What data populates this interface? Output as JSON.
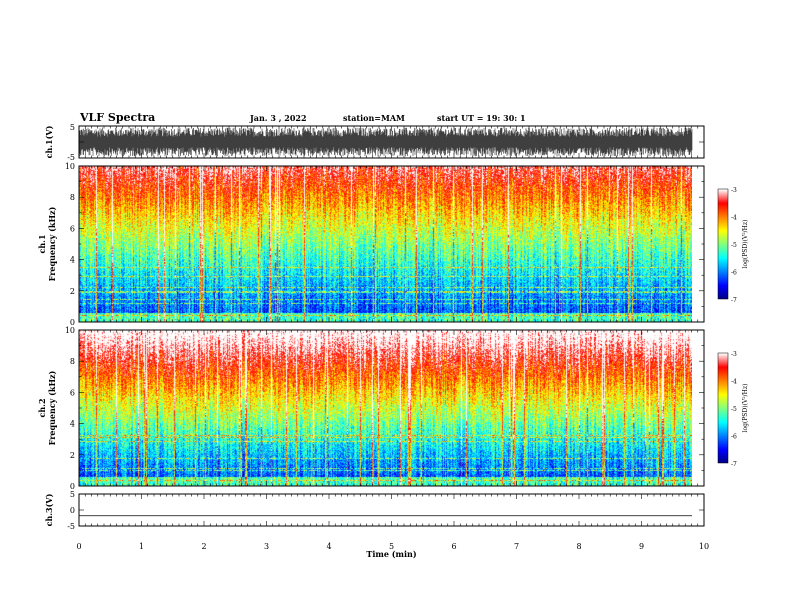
{
  "header": {
    "title": "VLF Spectra",
    "date": "Jan. 3 , 2022",
    "station": "station=MAM",
    "start": "start UT =  19: 30: 1"
  },
  "chart_data": [
    {
      "type": "line",
      "panel": "ch1-waveform",
      "ylabel": "ch.1(V)",
      "ylim": [
        -5,
        5
      ],
      "y_ticks": [
        "5",
        "-5"
      ],
      "description_values": {
        "amplitude_range_v": [
          -4.8,
          4.8
        ]
      }
    },
    {
      "type": "heatmap",
      "panel": "ch1-spectrogram",
      "ylabel": "ch.1",
      "ylabel2": "Frequency (kHz)",
      "ylim": [
        0,
        10
      ],
      "y_ticks": [
        "0",
        "2",
        "4",
        "6",
        "8",
        "10"
      ],
      "colorbar": {
        "label": "log(PSD)(V²/Hz)",
        "range": [
          -7,
          -3
        ],
        "ticks": [
          "-3",
          "-4",
          "-5",
          "-6",
          "-7"
        ]
      },
      "x_data_max_min": 9.83
    },
    {
      "type": "heatmap",
      "panel": "ch2-spectrogram",
      "ylabel": "ch.2",
      "ylabel2": "Frequency (kHz)",
      "ylim": [
        0,
        10
      ],
      "y_ticks": [
        "0",
        "2",
        "4",
        "6",
        "8",
        "10"
      ],
      "colorbar": {
        "label": "log(PSD)(V²/Hz)",
        "range": [
          -7,
          -3
        ],
        "ticks": [
          "-3",
          "-4",
          "-5",
          "-6",
          "-7"
        ]
      },
      "x_data_max_min": 9.83
    },
    {
      "type": "line",
      "panel": "ch3-waveform",
      "ylabel": "ch.3(V)",
      "ylim": [
        -5,
        5
      ],
      "y_ticks": [
        "5",
        "0",
        "-5"
      ],
      "description_values": {
        "constant_value_v": -1.8
      }
    }
  ],
  "xaxis": {
    "xlabel": "Time (min)",
    "xlim": [
      0,
      10
    ],
    "ticks": [
      "0",
      "1",
      "2",
      "3",
      "4",
      "5",
      "6",
      "7",
      "8",
      "9",
      "10"
    ]
  },
  "colorscale": [
    "#00007f",
    "#0000ff",
    "#0080ff",
    "#00ffff",
    "#80ff80",
    "#ffff00",
    "#ff8000",
    "#ff0000",
    "#ffffff"
  ]
}
